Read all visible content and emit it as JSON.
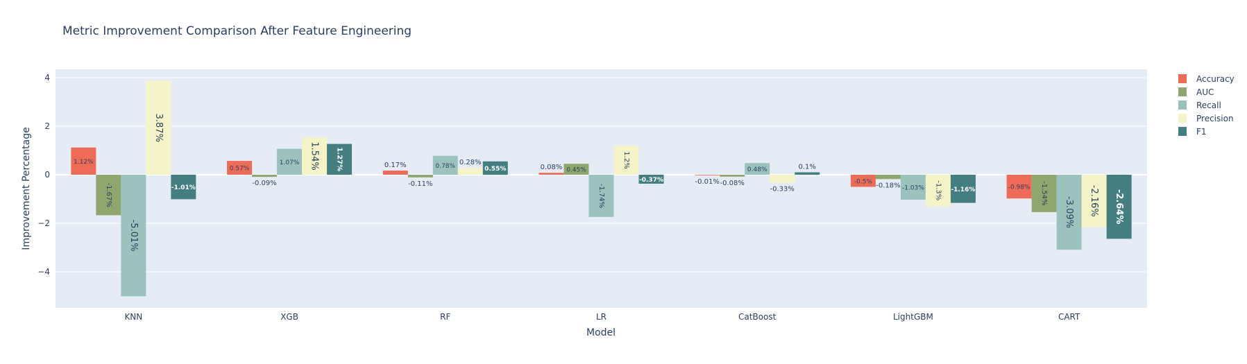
{
  "chart_data": {
    "type": "bar",
    "title": "Metric Improvement Comparison After Feature Engineering",
    "xlabel": "Model",
    "ylabel": "Improvement Percentage",
    "categories": [
      "KNN",
      "XGB",
      "RF",
      "LR",
      "CatBoost",
      "LightGBM",
      "CART"
    ],
    "yticks": [
      4,
      2,
      0,
      -2,
      -4
    ],
    "ytick_labels": [
      "4",
      "2",
      "0",
      "−2",
      "−4"
    ],
    "ylim": [
      -5.5,
      4.2
    ],
    "grid": true,
    "legend": "top-right",
    "series": [
      {
        "name": "Accuracy",
        "color": "#ee6c57",
        "values": [
          1.12,
          0.57,
          0.17,
          0.08,
          -0.01,
          -0.5,
          -0.98
        ],
        "labels": [
          "1.12%",
          "0.57%",
          "0.17%",
          "0.08%",
          "-0.01%",
          "-0.5%",
          "-0.98%"
        ]
      },
      {
        "name": "AUC",
        "color": "#8fa66f",
        "values": [
          -1.67,
          -0.09,
          -0.11,
          0.45,
          -0.08,
          -0.18,
          -1.54
        ],
        "labels": [
          "-1.67%",
          "-0.09%",
          "-0.11%",
          "0.45%",
          "-0.08%",
          "-0.18%",
          "-1.54%"
        ]
      },
      {
        "name": "Recall",
        "color": "#9bc2bd",
        "values": [
          -5.01,
          1.07,
          0.78,
          -1.74,
          0.48,
          -1.03,
          -3.09
        ],
        "labels": [
          "-5.01%",
          "1.07%",
          "0.78%",
          "-1.74%",
          "0.48%",
          "-1.03%",
          "-3.09%"
        ]
      },
      {
        "name": "Precision",
        "color": "#f5f3c8",
        "values": [
          3.87,
          1.54,
          0.28,
          1.2,
          -0.33,
          -1.3,
          -2.16
        ],
        "labels": [
          "3.87%",
          "1.54%",
          "0.28%",
          "1.2%",
          "-0.33%",
          "-1.3%",
          "-2.16%"
        ]
      },
      {
        "name": "F1",
        "color": "#457e80",
        "values": [
          -1.01,
          1.27,
          0.55,
          -0.37,
          0.1,
          -1.16,
          -2.64
        ],
        "labels": [
          "-1.01%",
          "1.27%",
          "0.55%",
          "-0.37%",
          "0.1%",
          "-1.16%",
          "-2.64%"
        ]
      }
    ]
  }
}
